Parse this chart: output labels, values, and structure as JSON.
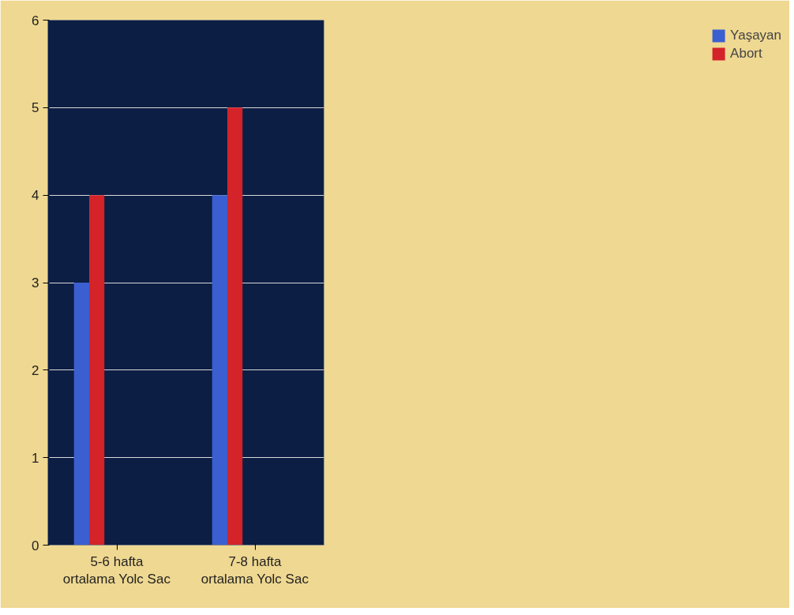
{
  "chart_data": {
    "type": "bar",
    "categories": [
      "5-6 hafta\nortalama Yolc Sac",
      "7-8 hafta\nortalama Yolc Sac"
    ],
    "series": [
      {
        "name": "Yaşayan",
        "color": "#3b5fd0",
        "values": [
          3,
          4
        ]
      },
      {
        "name": "Abort",
        "color": "#d42329",
        "values": [
          4,
          5
        ]
      }
    ],
    "ylim": [
      0,
      6
    ],
    "yticks": [
      0,
      1,
      2,
      3,
      4,
      5,
      6
    ],
    "grid": "y",
    "legend": "right"
  }
}
